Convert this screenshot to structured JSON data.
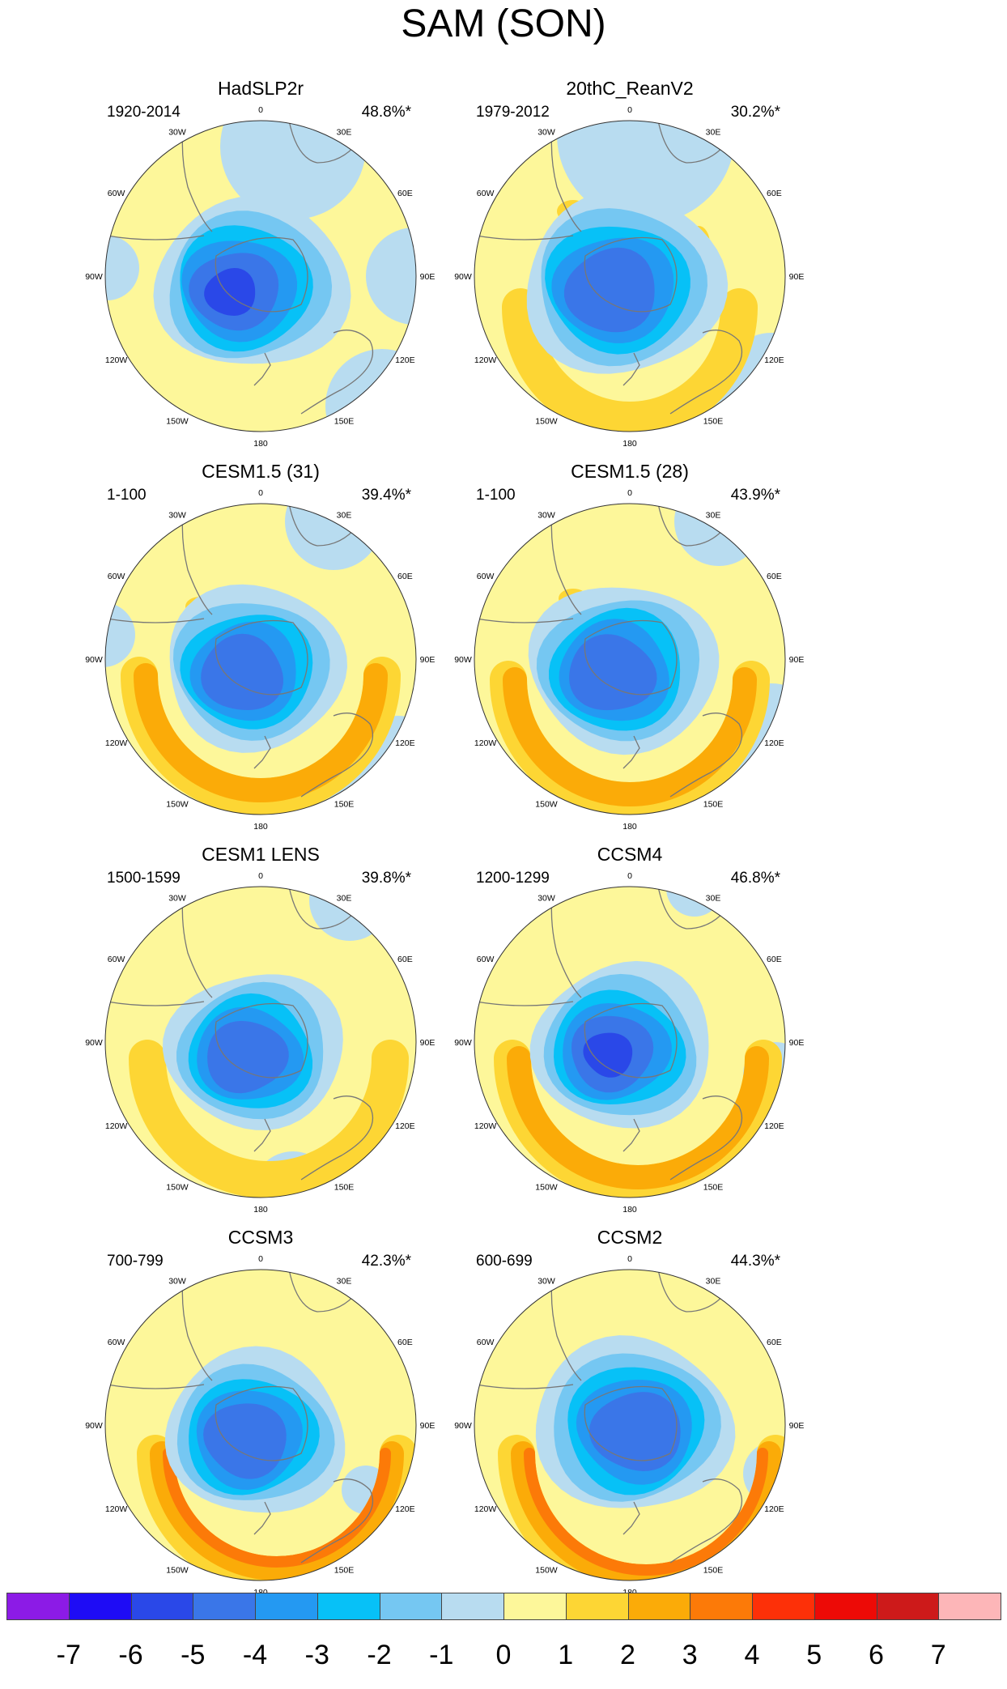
{
  "title": "SAM (SON)",
  "colors": {
    "neg7": "#8c1be6",
    "neg6": "#1e0cf5",
    "neg5": "#2a48e8",
    "neg4": "#3a76e8",
    "neg3": "#2499f2",
    "neg2": "#07c1f7",
    "neg1": "#75c7f2",
    "neg0": "#b8dcf0",
    "pos0": "#fdf79a",
    "pos1": "#fdd634",
    "pos2": "#fbab08",
    "pos3": "#fc7a08",
    "pos4": "#fd3008",
    "pos5": "#ed0a06",
    "pos6": "#cd1a1a",
    "pos7": "#fdb6b8",
    "land_outline": "#777777"
  },
  "longitude_labels": [
    "0",
    "30E",
    "60E",
    "90E",
    "120E",
    "150E",
    "180",
    "150W",
    "120W",
    "90W",
    "60W",
    "30W"
  ],
  "panels": [
    {
      "title": "HadSLP2r",
      "years": "1920-2014",
      "percent": "48.8%*"
    },
    {
      "title": "20thC_ReanV2",
      "years": "1979-2012",
      "percent": "30.2%*"
    },
    {
      "title": "CESM1.5 (31)",
      "years": "1-100",
      "percent": "39.4%*"
    },
    {
      "title": "CESM1.5 (28)",
      "years": "1-100",
      "percent": "43.9%*"
    },
    {
      "title": "CESM1 LENS",
      "years": "1500-1599",
      "percent": "39.8%*"
    },
    {
      "title": "CCSM4",
      "years": "1200-1299",
      "percent": "46.8%*"
    },
    {
      "title": "CCSM3",
      "years": "700-799",
      "percent": "42.3%*"
    },
    {
      "title": "CCSM2",
      "years": "600-699",
      "percent": "44.3%*"
    }
  ],
  "colorbar": {
    "labels": [
      "-7",
      "-6",
      "-5",
      "-4",
      "-3",
      "-2",
      "-1",
      "0",
      "1",
      "2",
      "3",
      "4",
      "5",
      "6",
      "7"
    ]
  }
}
